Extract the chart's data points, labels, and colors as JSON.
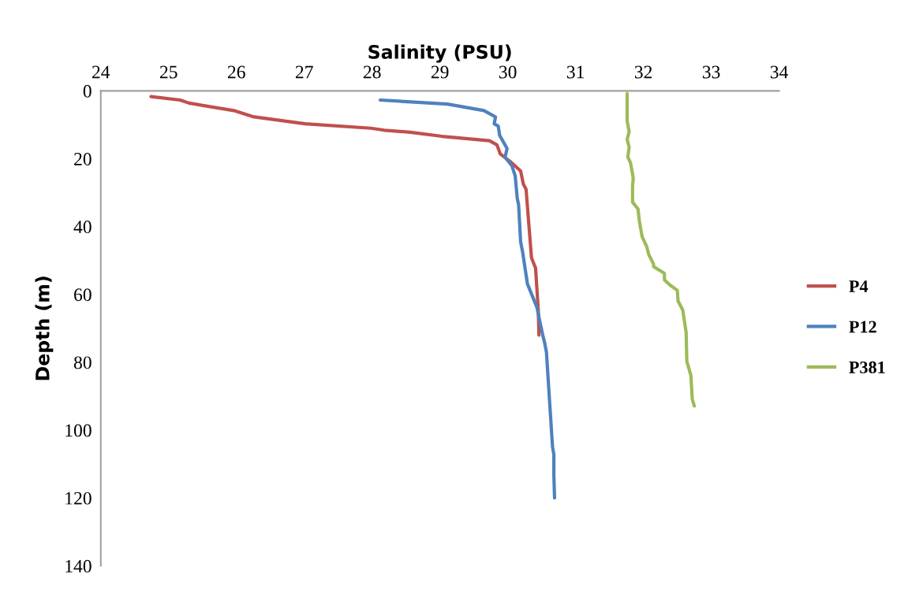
{
  "chart_data": {
    "type": "line",
    "xlabel": "Salinity (PSU)",
    "ylabel": "Depth (m)",
    "xlim": [
      24,
      34
    ],
    "xticks": [
      24,
      25,
      26,
      27,
      28,
      29,
      30,
      31,
      32,
      33,
      34
    ],
    "ylim": [
      140,
      0
    ],
    "yticks": [
      0,
      20,
      40,
      60,
      80,
      100,
      120,
      140
    ],
    "grid": false,
    "legend": "right",
    "marker": "none",
    "line_style": "solid",
    "series": [
      {
        "name": "P4",
        "color": "#c0504d",
        "x": [
          24.74,
          25.17,
          25.3,
          25.96,
          26.24,
          27.01,
          27.98,
          28.18,
          28.56,
          29.03,
          29.73,
          29.84,
          29.89,
          30.04,
          30.19,
          30.23,
          30.27,
          30.35,
          30.41,
          30.45,
          30.46
        ],
        "values": [
          1.7,
          2.7,
          3.6,
          5.8,
          7.6,
          9.7,
          11.0,
          11.6,
          12.2,
          13.4,
          14.7,
          15.9,
          18.6,
          20.9,
          23.6,
          27.5,
          29.0,
          49.2,
          52.2,
          64.6,
          72.0
        ]
      },
      {
        "name": "P12",
        "color": "#4f81bd",
        "x": [
          28.12,
          29.11,
          29.65,
          29.82,
          29.8,
          29.86,
          29.88,
          29.99,
          29.96,
          30.06,
          30.11,
          30.14,
          30.16,
          30.19,
          30.22,
          30.29,
          30.43,
          30.52,
          30.54,
          30.57,
          30.62,
          30.66,
          30.68,
          30.68,
          30.69
        ],
        "values": [
          2.7,
          3.9,
          5.8,
          7.7,
          9.7,
          10.4,
          13.1,
          17.0,
          19.6,
          22.0,
          25.1,
          31.7,
          33.6,
          44.5,
          47.6,
          56.9,
          63.8,
          72.4,
          73.9,
          77.0,
          92.5,
          104.9,
          107.2,
          113.4,
          120.0
        ]
      },
      {
        "name": "P381",
        "color": "#9bbb59",
        "x": [
          31.76,
          31.76,
          31.79,
          31.76,
          31.79,
          31.77,
          31.81,
          31.85,
          31.84,
          31.84,
          31.92,
          31.94,
          31.98,
          32.05,
          32.08,
          32.15,
          32.15,
          32.31,
          32.31,
          32.39,
          32.5,
          32.51,
          32.58,
          32.63,
          32.64,
          32.7,
          32.72,
          32.75
        ],
        "values": [
          0.8,
          8.9,
          12.0,
          14.3,
          16.6,
          19.5,
          21.2,
          25.7,
          28.2,
          32.8,
          34.8,
          38.3,
          42.9,
          46.0,
          48.3,
          51.1,
          51.8,
          53.8,
          55.7,
          57.2,
          58.8,
          61.9,
          64.6,
          71.2,
          79.7,
          83.9,
          90.9,
          92.9
        ]
      }
    ]
  }
}
